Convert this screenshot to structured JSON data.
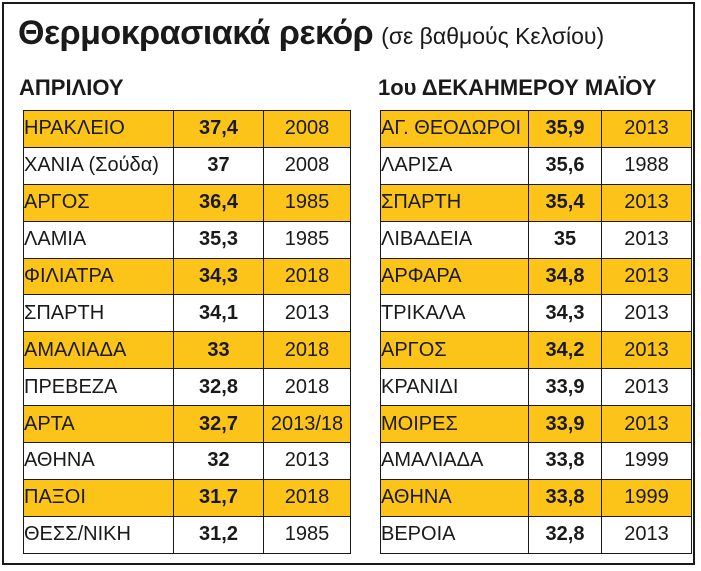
{
  "colors": {
    "highlight": "#fcc419",
    "border": "#1a1a1a",
    "text": "#1a1a1a"
  },
  "header": {
    "title": "Θερμοκρασιακά ρεκόρ",
    "subtitle": "(σε βαθμούς Κελσίου)"
  },
  "chart_data": {
    "type": "table",
    "title": "Θερμοκρασιακά ρεκόρ",
    "subtitle": "(σε βαθμούς Κελσίου)",
    "tables": [
      {
        "heading": "ΑΠΡΙΛΙΟΥ",
        "rows": [
          {
            "place": "ΗΡΑΚΛΕΙΟ",
            "temp": "37,4",
            "year": "2008",
            "highlight": true
          },
          {
            "place": "ΧΑΝΙΑ (Σούδα)",
            "temp": "37",
            "year": "2008",
            "highlight": false
          },
          {
            "place": "ΑΡΓΟΣ",
            "temp": "36,4",
            "year": "1985",
            "highlight": true
          },
          {
            "place": "ΛΑΜΙΑ",
            "temp": "35,3",
            "year": "1985",
            "highlight": false
          },
          {
            "place": "ΦΙΛΙΑΤΡΑ",
            "temp": "34,3",
            "year": "2018",
            "highlight": true
          },
          {
            "place": "ΣΠΑΡΤΗ",
            "temp": "34,1",
            "year": "2013",
            "highlight": false
          },
          {
            "place": "ΑΜΑΛΙΑΔΑ",
            "temp": "33",
            "year": "2018",
            "highlight": true
          },
          {
            "place": "ΠΡΕΒΕΖΑ",
            "temp": "32,8",
            "year": "2018",
            "highlight": false
          },
          {
            "place": "ΑΡΤΑ",
            "temp": "32,7",
            "year": "2013/18",
            "highlight": true
          },
          {
            "place": "ΑΘΗΝΑ",
            "temp": "32",
            "year": "2013",
            "highlight": false
          },
          {
            "place": "ΠΑΞΟΙ",
            "temp": "31,7",
            "year": "2018",
            "highlight": true
          },
          {
            "place": "ΘΕΣΣ/ΝΙΚΗ",
            "temp": "31,2",
            "year": "1985",
            "highlight": false
          }
        ]
      },
      {
        "heading": "1ου ΔΕΚΑΗΜΕΡΟΥ ΜΑΪΟΥ",
        "rows": [
          {
            "place": "ΑΓ. ΘΕΟΔΩΡΟΙ",
            "temp": "35,9",
            "year": "2013",
            "highlight": true
          },
          {
            "place": "ΛΑΡΙΣΑ",
            "temp": "35,6",
            "year": "1988",
            "highlight": false
          },
          {
            "place": "ΣΠΑΡΤΗ",
            "temp": "35,4",
            "year": "2013",
            "highlight": true
          },
          {
            "place": "ΛΙΒΑΔΕΙΑ",
            "temp": "35",
            "year": "2013",
            "highlight": false
          },
          {
            "place": "ΑΡΦΑΡΑ",
            "temp": "34,8",
            "year": "2013",
            "highlight": true
          },
          {
            "place": "ΤΡΙΚΑΛΑ",
            "temp": "34,3",
            "year": "2013",
            "highlight": false
          },
          {
            "place": "ΑΡΓΟΣ",
            "temp": "34,2",
            "year": "2013",
            "highlight": true
          },
          {
            "place": "ΚΡΑΝΙΔΙ",
            "temp": "33,9",
            "year": "2013",
            "highlight": false
          },
          {
            "place": "ΜΟΙΡΕΣ",
            "temp": "33,9",
            "year": "2013",
            "highlight": true
          },
          {
            "place": "ΑΜΑΛΙΑΔΑ",
            "temp": "33,8",
            "year": "1999",
            "highlight": false
          },
          {
            "place": "ΑΘΗΝΑ",
            "temp": "33,8",
            "year": "1999",
            "highlight": true
          },
          {
            "place": "ΒΕΡΟΙΑ",
            "temp": "32,8",
            "year": "2013",
            "highlight": false
          }
        ]
      }
    ]
  }
}
